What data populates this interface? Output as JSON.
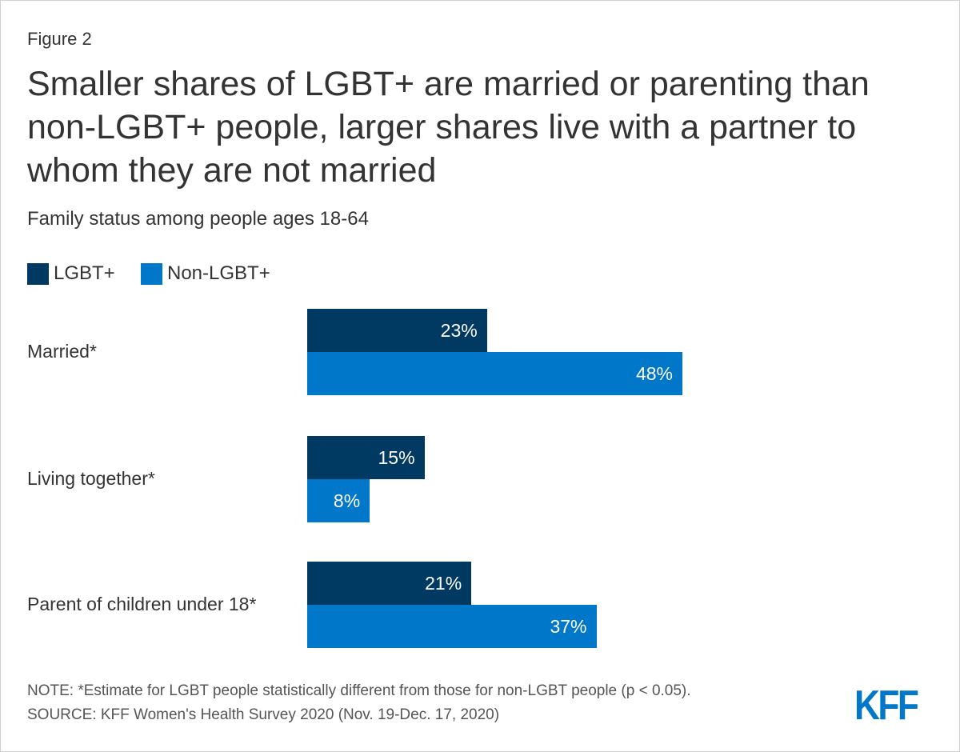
{
  "figure_label": "Figure 2",
  "title": "Smaller shares of LGBT+ are married or parenting than non-LGBT+ people, larger shares live with a partner to whom they are not married",
  "subtitle": "Family status among people ages 18-64",
  "colors": {
    "lgbt": "#003a63",
    "non_lgbt": "#0077c8"
  },
  "chart_data": {
    "type": "bar",
    "orientation": "horizontal",
    "categories": [
      "Married*",
      "Living together*",
      "Parent of children under 18*"
    ],
    "series": [
      {
        "name": "LGBT+",
        "values": [
          23,
          15,
          21
        ],
        "labels": [
          "23%",
          "15%",
          "21%"
        ]
      },
      {
        "name": "Non-LGBT+",
        "values": [
          48,
          8,
          37
        ],
        "labels": [
          "48%",
          "8%",
          "37%"
        ]
      }
    ],
    "xlim": [
      0,
      48
    ],
    "legend": "top-left",
    "grid": false
  },
  "note": "NOTE: *Estimate for LGBT people statistically different from those for non-LGBT people (p < 0.05).",
  "source": "SOURCE: KFF Women's Health Survey 2020 (Nov. 19-Dec. 17, 2020)",
  "logo": "KFF"
}
